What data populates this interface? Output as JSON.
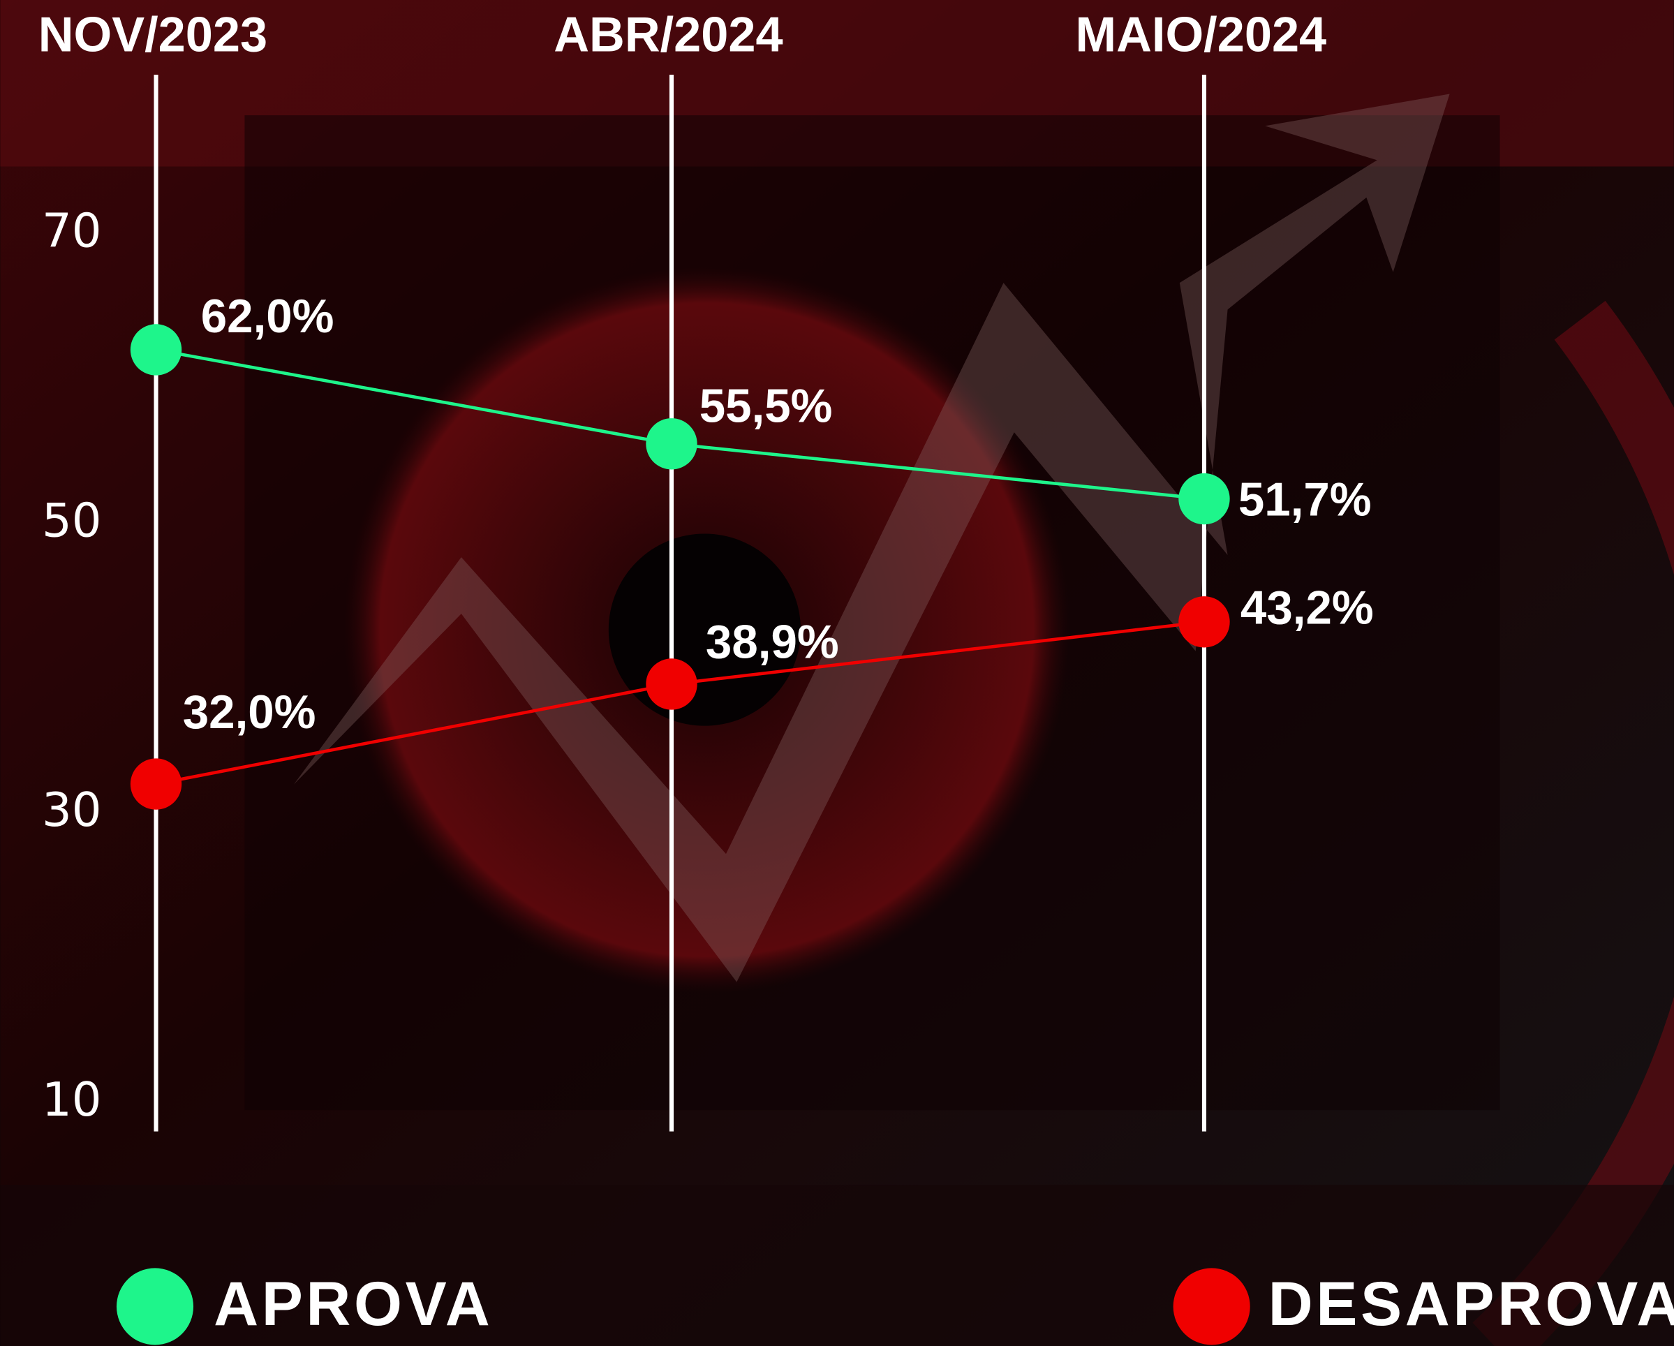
{
  "chart_data": {
    "type": "line",
    "categories": [
      "NOV/2023",
      "ABR/2024",
      "MAIO/2024"
    ],
    "series": [
      {
        "name": "APROVA",
        "color": "#1ef58b",
        "values": [
          62.0,
          55.5,
          51.7
        ],
        "value_labels": [
          "62,0%",
          "55,5%",
          "51,7%"
        ]
      },
      {
        "name": "DESAPROVA",
        "color": "#f00000",
        "values": [
          32.0,
          38.9,
          43.2
        ],
        "value_labels": [
          "32,0%",
          "38,9%",
          "43,2%"
        ]
      }
    ],
    "ylim": [
      8,
      81
    ],
    "yticks": [
      10,
      30,
      50,
      70
    ]
  }
}
